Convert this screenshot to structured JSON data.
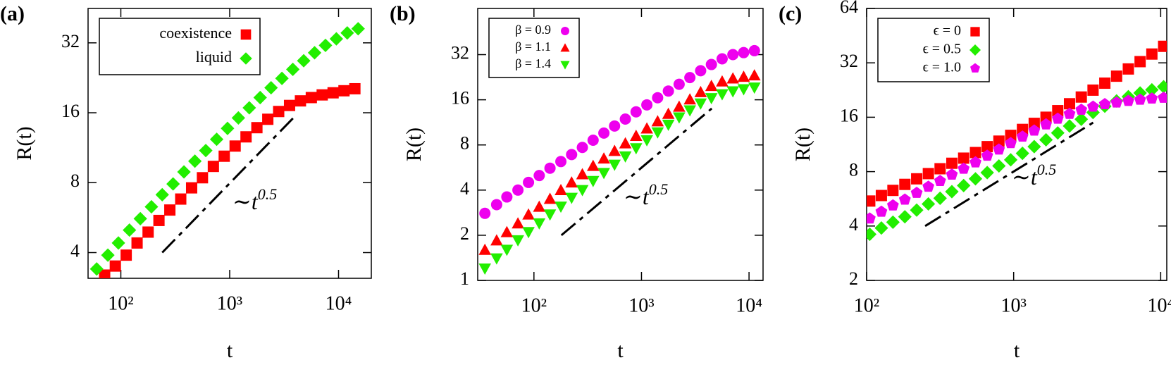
{
  "chart_data": [
    {
      "type": "scatter",
      "label": "(a)",
      "xlabel": "t",
      "ylabel": "R(t)",
      "xscale": "log",
      "yscale": "log",
      "xlim": [
        50,
        20000
      ],
      "ylim": [
        3.1,
        45
      ],
      "xticks": [
        {
          "value": 100,
          "label": "10²"
        },
        {
          "value": 1000,
          "label": "10³"
        },
        {
          "value": 10000,
          "label": "10⁴"
        }
      ],
      "yticks": [
        4,
        8,
        16,
        32
      ],
      "legend": "top-left",
      "annotation": {
        "text": "∼t",
        "superscript": "0.5"
      },
      "guide": {
        "x": [
          240,
          4000
        ],
        "y": [
          4,
          15.5
        ]
      },
      "series": [
        {
          "name": "coexistence",
          "color": "#ff0000",
          "marker": "square",
          "x": [
            71,
            89,
            112,
            141,
            178,
            224,
            282,
            355,
            447,
            562,
            708,
            891,
            1122,
            1413,
            1778,
            2239,
            2818,
            3548,
            4467,
            5623,
            7079,
            8913,
            11220,
            14125
          ],
          "values": [
            3.2,
            3.5,
            3.9,
            4.4,
            4.9,
            5.5,
            6.1,
            6.8,
            7.6,
            8.4,
            9.4,
            10.4,
            11.5,
            12.6,
            13.8,
            15.0,
            16.2,
            17.2,
            18.0,
            18.6,
            19.1,
            19.5,
            19.9,
            20.3
          ]
        },
        {
          "name": "liquid",
          "color": "#22ee00",
          "marker": "diamond",
          "x": [
            60,
            76,
            95,
            120,
            151,
            191,
            240,
            302,
            380,
            479,
            603,
            759,
            955,
            1202,
            1514,
            1905,
            2399,
            3020,
            3802,
            4786,
            6026,
            7586,
            9550,
            12023,
            15136
          ],
          "values": [
            3.4,
            3.9,
            4.4,
            5.0,
            5.6,
            6.3,
            7.1,
            7.9,
            8.9,
            9.9,
            11.0,
            12.3,
            13.7,
            15.2,
            16.8,
            18.6,
            20.5,
            22.5,
            24.6,
            26.8,
            29.0,
            31.2,
            33.3,
            35.3,
            36.8
          ]
        }
      ]
    },
    {
      "type": "scatter",
      "label": "(b)",
      "xlabel": "t",
      "ylabel": "R(t)",
      "xscale": "log",
      "yscale": "log",
      "xlim": [
        30,
        13500
      ],
      "ylim": [
        1,
        65
      ],
      "xticks": [
        {
          "value": 100,
          "label": "10²"
        },
        {
          "value": 1000,
          "label": "10³"
        },
        {
          "value": 10000,
          "label": "10⁴"
        }
      ],
      "yticks": [
        1,
        2,
        4,
        8,
        16,
        32
      ],
      "legend": "top-left",
      "annotation": {
        "text": "∼t",
        "superscript": "0.5"
      },
      "guide": {
        "x": [
          180,
          4500
        ],
        "y": [
          2,
          14
        ]
      },
      "series": [
        {
          "name": "β = 0.9",
          "color": "#ee00ee",
          "marker": "circle",
          "x": [
            35,
            45,
            56,
            71,
            89,
            112,
            141,
            178,
            224,
            282,
            355,
            447,
            562,
            708,
            891,
            1122,
            1413,
            1778,
            2239,
            2818,
            3548,
            4467,
            5623,
            7079,
            8913,
            11220
          ],
          "values": [
            2.8,
            3.2,
            3.6,
            4.0,
            4.5,
            5.0,
            5.6,
            6.2,
            6.9,
            7.7,
            8.6,
            9.6,
            10.7,
            11.9,
            13.3,
            14.8,
            16.5,
            18.3,
            20.3,
            22.5,
            25,
            27.5,
            30,
            32,
            33,
            34
          ]
        },
        {
          "name": "β = 1.1",
          "color": "#ff0000",
          "marker": "triangle",
          "x": [
            35,
            45,
            56,
            71,
            89,
            112,
            141,
            178,
            224,
            282,
            355,
            447,
            562,
            708,
            891,
            1122,
            1413,
            1778,
            2239,
            2818,
            3548,
            4467,
            5623,
            7079,
            8913,
            11220
          ],
          "values": [
            1.6,
            1.85,
            2.1,
            2.4,
            2.75,
            3.1,
            3.5,
            4.0,
            4.5,
            5.1,
            5.8,
            6.5,
            7.3,
            8.2,
            9.2,
            10.3,
            11.5,
            12.9,
            14.4,
            16.1,
            18.0,
            19.8,
            21.2,
            22.2,
            22.8,
            23.3
          ]
        },
        {
          "name": "β = 1.4",
          "color": "#22ee00",
          "marker": "triangle-down",
          "x": [
            35,
            45,
            56,
            71,
            89,
            112,
            141,
            178,
            224,
            282,
            355,
            447,
            562,
            708,
            891,
            1122,
            1413,
            1778,
            2239,
            2818,
            3548,
            4467,
            5623,
            7079,
            8913,
            11220
          ],
          "values": [
            1.2,
            1.4,
            1.6,
            1.85,
            2.1,
            2.4,
            2.75,
            3.1,
            3.55,
            4.0,
            4.6,
            5.2,
            5.9,
            6.7,
            7.6,
            8.6,
            9.7,
            10.9,
            12.2,
            13.6,
            15.1,
            16.4,
            17.4,
            18.2,
            18.8,
            19.3
          ]
        }
      ]
    },
    {
      "type": "scatter",
      "label": "(c)",
      "xlabel": "t",
      "ylabel": "R(t)",
      "xscale": "log",
      "yscale": "log",
      "xlim": [
        100,
        11000
      ],
      "ylim": [
        2,
        64
      ],
      "xticks": [
        {
          "value": 100,
          "label": "10²"
        },
        {
          "value": 1000,
          "label": "10³"
        },
        {
          "value": 10000,
          "label": "10⁴"
        }
      ],
      "yticks": [
        2,
        4,
        8,
        16,
        32,
        64
      ],
      "legend": "top-left",
      "annotation": {
        "text": "∼t",
        "superscript": "0.5"
      },
      "guide": {
        "x": [
          250,
          3500
        ],
        "y": [
          4,
          15
        ]
      },
      "series": [
        {
          "name": "ϵ = 0",
          "color": "#ff0000",
          "marker": "square",
          "x": [
            105,
            126,
            151,
            182,
            219,
            263,
            316,
            380,
            457,
            550,
            661,
            794,
            955,
            1148,
            1380,
            1660,
            1995,
            2399,
            2884,
            3467,
            4169,
            5012,
            6026,
            7244,
            8710,
            10471
          ],
          "values": [
            5.5,
            5.9,
            6.3,
            6.8,
            7.3,
            7.8,
            8.3,
            8.9,
            9.5,
            10.2,
            11.0,
            11.8,
            12.7,
            13.7,
            14.8,
            16.0,
            17.4,
            19.0,
            20.7,
            22.6,
            24.7,
            27.0,
            29.6,
            32.5,
            35.8,
            39.5
          ]
        },
        {
          "name": "ϵ = 0.5",
          "color": "#22ee00",
          "marker": "diamond",
          "x": [
            105,
            126,
            151,
            182,
            219,
            263,
            316,
            380,
            457,
            550,
            661,
            794,
            955,
            1148,
            1380,
            1660,
            1995,
            2399,
            2884,
            3467,
            4169,
            5012,
            6026,
            7244,
            8710,
            10471
          ],
          "values": [
            3.6,
            3.9,
            4.2,
            4.5,
            4.9,
            5.3,
            5.7,
            6.2,
            6.7,
            7.3,
            7.9,
            8.6,
            9.3,
            10.1,
            11.0,
            12.0,
            13.1,
            14.3,
            15.6,
            17.0,
            18.4,
            19.7,
            20.8,
            21.8,
            22.7,
            23.6
          ]
        },
        {
          "name": "ϵ = 1.0",
          "color": "#ee00ee",
          "marker": "pentagon",
          "x": [
            105,
            126,
            151,
            182,
            219,
            263,
            316,
            380,
            457,
            550,
            661,
            794,
            955,
            1148,
            1380,
            1660,
            1995,
            2399,
            2884,
            3467,
            4169,
            5012,
            6026,
            7244,
            8710,
            10471
          ],
          "values": [
            4.4,
            4.8,
            5.2,
            5.6,
            6.1,
            6.6,
            7.1,
            7.7,
            8.3,
            9.0,
            9.8,
            10.6,
            11.5,
            12.5,
            13.5,
            14.6,
            15.7,
            16.7,
            17.6,
            18.3,
            18.9,
            19.3,
            19.7,
            20.0,
            20.3,
            20.5
          ]
        }
      ]
    }
  ]
}
